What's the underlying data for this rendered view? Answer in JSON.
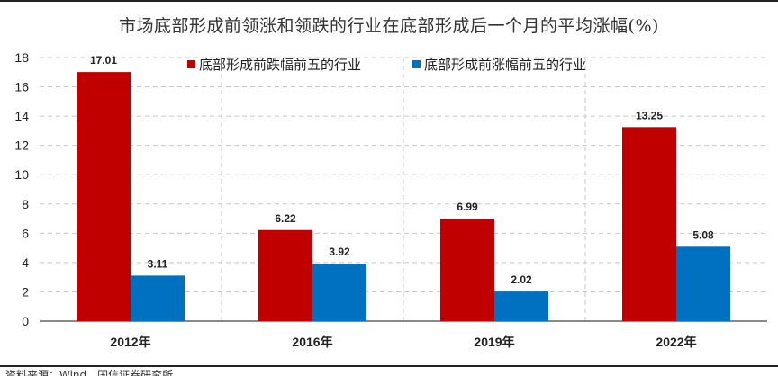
{
  "title": "市场底部形成前领涨和领跌的行业在底部形成后一个月的平均涨幅(%)",
  "source": "资料来源：Wind，国信证券研究所",
  "chart_data": {
    "type": "bar",
    "categories": [
      "2012年",
      "2016年",
      "2019年",
      "2022年"
    ],
    "series": [
      {
        "name": "底部形成前跌幅前五的行业",
        "color": "#C00000",
        "values": [
          17.01,
          6.22,
          6.99,
          13.25
        ]
      },
      {
        "name": "底部形成前涨幅前五的行业",
        "color": "#0070C0",
        "values": [
          3.11,
          3.92,
          2.02,
          5.08
        ]
      }
    ],
    "ylim": [
      0,
      18
    ],
    "yticks": [
      0,
      2,
      4,
      6,
      8,
      10,
      12,
      14,
      16,
      18
    ],
    "grid": true,
    "legend": "top-center",
    "xlabel": "",
    "ylabel": ""
  }
}
